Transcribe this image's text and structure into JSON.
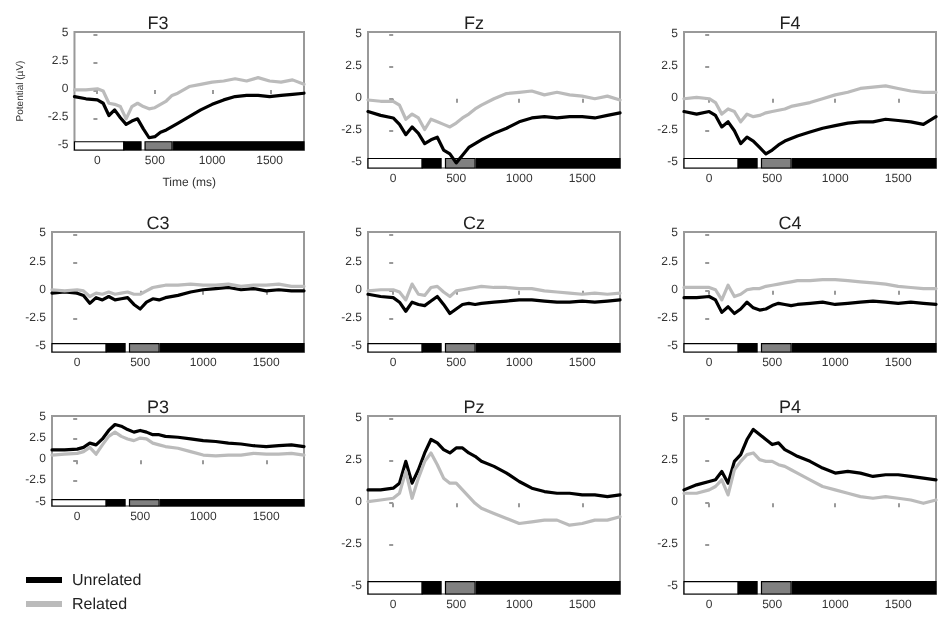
{
  "chart_data": [
    {
      "type": "line",
      "title": "F3",
      "xlabel": "Time (ms)",
      "ylabel": "Potential (µV)",
      "x": [
        -200,
        -100,
        0,
        50,
        100,
        150,
        200,
        250,
        300,
        350,
        400,
        450,
        500,
        550,
        600,
        650,
        700,
        800,
        900,
        1000,
        1100,
        1200,
        1300,
        1400,
        1500,
        1600,
        1700,
        1800
      ],
      "xlim": [
        -200,
        1800
      ],
      "ylim": [
        -5.4,
        5.2
      ],
      "xticks": [
        0,
        500,
        1000,
        1500
      ],
      "yticks": [
        -5,
        -2.5,
        0,
        2.5,
        5
      ],
      "grid": false,
      "legend": false,
      "marker": "none",
      "line_style": "solid",
      "bands": [
        {
          "axis": "x",
          "from": -200,
          "to": 230,
          "color": "#ffffff"
        },
        {
          "axis": "x",
          "from": 230,
          "to": 380,
          "color": "#000000"
        },
        {
          "axis": "x",
          "from": 415,
          "to": 650,
          "color": "#808080"
        },
        {
          "axis": "x",
          "from": 660,
          "to": 1800,
          "color": "#000000"
        }
      ],
      "series": [
        {
          "color": "#000000",
          "values": [
            -0.6,
            -0.8,
            -0.9,
            -1.2,
            -2.3,
            -1.8,
            -2.5,
            -3.1,
            -2.8,
            -2.6,
            -3.5,
            -4.3,
            -4.2,
            -3.8,
            -3.6,
            -3.3,
            -3.0,
            -2.4,
            -1.8,
            -1.3,
            -0.9,
            -0.6,
            -0.5,
            -0.5,
            -0.6,
            -0.5,
            -0.4,
            -0.3
          ]
        },
        {
          "color": "#bbbbbb",
          "values": [
            0,
            0,
            0.1,
            -0.1,
            -1.2,
            -1.3,
            -1.5,
            -2.6,
            -1.5,
            -1.2,
            -1.5,
            -1.7,
            -1.6,
            -1.3,
            -1.0,
            -0.5,
            -0.3,
            0.3,
            0.5,
            0.7,
            0.8,
            1.0,
            0.8,
            1.1,
            0.8,
            0.7,
            0.9,
            0.5
          ]
        }
      ]
    },
    {
      "type": "line",
      "title": "Fz",
      "x": [
        -200,
        -100,
        0,
        50,
        100,
        150,
        200,
        250,
        300,
        350,
        400,
        450,
        500,
        550,
        600,
        650,
        700,
        800,
        900,
        1000,
        1100,
        1200,
        1300,
        1400,
        1500,
        1600,
        1700,
        1800
      ],
      "xlim": [
        -200,
        1800
      ],
      "ylim": [
        -5.4,
        5.2
      ],
      "xticks": [
        0,
        500,
        1000,
        1500
      ],
      "yticks": [
        -5,
        -2.5,
        0,
        2.5,
        5
      ],
      "grid": false,
      "legend": false,
      "marker": "none",
      "line_style": "solid",
      "bands": [
        {
          "axis": "x",
          "from": -200,
          "to": 230,
          "color": "#ffffff"
        },
        {
          "axis": "x",
          "from": 230,
          "to": 380,
          "color": "#000000"
        },
        {
          "axis": "x",
          "from": 415,
          "to": 650,
          "color": "#808080"
        },
        {
          "axis": "x",
          "from": 660,
          "to": 1800,
          "color": "#000000"
        }
      ],
      "series": [
        {
          "color": "#000000",
          "values": [
            -1.0,
            -1.3,
            -1.5,
            -2.0,
            -2.8,
            -2.2,
            -2.7,
            -3.5,
            -3.2,
            -3.0,
            -4.0,
            -4.3,
            -5.0,
            -4.4,
            -3.8,
            -3.5,
            -3.2,
            -2.7,
            -2.3,
            -1.8,
            -1.5,
            -1.4,
            -1.5,
            -1.4,
            -1.4,
            -1.5,
            -1.3,
            -1.1
          ]
        },
        {
          "color": "#bbbbbb",
          "values": [
            -0.1,
            -0.2,
            -0.2,
            -0.5,
            -1.6,
            -1.2,
            -1.5,
            -2.4,
            -1.6,
            -1.8,
            -2.0,
            -2.2,
            -1.9,
            -1.5,
            -1.2,
            -0.8,
            -0.5,
            0,
            0.4,
            0.5,
            0.6,
            0.3,
            0.5,
            0.3,
            0.2,
            0,
            0.2,
            -0.1
          ]
        }
      ]
    },
    {
      "type": "line",
      "title": "F4",
      "x": [
        -200,
        -100,
        0,
        50,
        100,
        150,
        200,
        250,
        300,
        350,
        400,
        450,
        500,
        550,
        600,
        650,
        700,
        800,
        900,
        1000,
        1100,
        1200,
        1300,
        1400,
        1500,
        1600,
        1700,
        1800
      ],
      "xlim": [
        -200,
        1800
      ],
      "ylim": [
        -5.4,
        5.2
      ],
      "xticks": [
        0,
        500,
        1000,
        1500
      ],
      "yticks": [
        -5,
        -2.5,
        0,
        2.5,
        5
      ],
      "grid": false,
      "legend": false,
      "marker": "none",
      "line_style": "solid",
      "bands": [
        {
          "axis": "x",
          "from": -200,
          "to": 230,
          "color": "#ffffff"
        },
        {
          "axis": "x",
          "from": 230,
          "to": 380,
          "color": "#000000"
        },
        {
          "axis": "x",
          "from": 415,
          "to": 650,
          "color": "#808080"
        },
        {
          "axis": "x",
          "from": 660,
          "to": 1800,
          "color": "#000000"
        }
      ],
      "series": [
        {
          "color": "#000000",
          "values": [
            -1.0,
            -1.2,
            -1.0,
            -1.3,
            -2.2,
            -1.8,
            -2.5,
            -3.5,
            -3.0,
            -3.3,
            -3.8,
            -4.3,
            -4.0,
            -3.6,
            -3.3,
            -3.1,
            -2.9,
            -2.6,
            -2.3,
            -2.1,
            -1.9,
            -1.8,
            -1.8,
            -1.6,
            -1.7,
            -1.8,
            -2.0,
            -1.4
          ]
        },
        {
          "color": "#bbbbbb",
          "values": [
            0,
            0.1,
            0,
            -0.3,
            -1.2,
            -0.8,
            -1.0,
            -1.8,
            -1.2,
            -1.4,
            -1.3,
            -1.1,
            -1.0,
            -0.9,
            -0.8,
            -0.6,
            -0.5,
            -0.3,
            0,
            0.3,
            0.5,
            0.8,
            0.9,
            1.0,
            0.8,
            0.6,
            0.5,
            0.5
          ]
        }
      ]
    },
    {
      "type": "line",
      "title": "C3",
      "x": [
        -200,
        -100,
        0,
        50,
        100,
        150,
        200,
        250,
        300,
        350,
        400,
        450,
        500,
        550,
        600,
        650,
        700,
        800,
        900,
        1000,
        1100,
        1200,
        1300,
        1400,
        1500,
        1600,
        1700,
        1800
      ],
      "xlim": [
        -200,
        1800
      ],
      "ylim": [
        -5.4,
        5.2
      ],
      "xticks": [
        0,
        500,
        1000,
        1500
      ],
      "yticks": [
        -5,
        -2.5,
        0,
        2.5,
        5
      ],
      "grid": false,
      "legend": false,
      "marker": "none",
      "line_style": "solid",
      "bands": [
        {
          "axis": "x",
          "from": -200,
          "to": 230,
          "color": "#ffffff"
        },
        {
          "axis": "x",
          "from": 230,
          "to": 380,
          "color": "#000000"
        },
        {
          "axis": "x",
          "from": 415,
          "to": 650,
          "color": "#808080"
        },
        {
          "axis": "x",
          "from": 660,
          "to": 1800,
          "color": "#000000"
        }
      ],
      "series": [
        {
          "color": "#000000",
          "values": [
            -0.2,
            -0.1,
            -0.2,
            -0.4,
            -1.1,
            -0.6,
            -0.8,
            -0.5,
            -0.8,
            -0.7,
            -0.6,
            -1.2,
            -1.6,
            -1.0,
            -0.7,
            -0.8,
            -0.6,
            -0.4,
            -0.1,
            0.1,
            0.2,
            0.3,
            0.1,
            0.2,
            0,
            0.1,
            0,
            0
          ]
        },
        {
          "color": "#bbbbbb",
          "values": [
            0.1,
            0,
            0.1,
            0,
            -0.5,
            -0.2,
            -0.3,
            -0.1,
            -0.3,
            -0.2,
            -0.1,
            -0.3,
            -0.3,
            0,
            0.3,
            0.4,
            0.5,
            0.5,
            0.6,
            0.5,
            0.5,
            0.6,
            0.4,
            0.5,
            0.5,
            0.6,
            0.4,
            0.4
          ]
        }
      ]
    },
    {
      "type": "line",
      "title": "Cz",
      "x": [
        -200,
        -100,
        0,
        50,
        100,
        150,
        200,
        250,
        300,
        350,
        400,
        450,
        500,
        550,
        600,
        650,
        700,
        800,
        900,
        1000,
        1100,
        1200,
        1300,
        1400,
        1500,
        1600,
        1700,
        1800
      ],
      "xlim": [
        -200,
        1800
      ],
      "ylim": [
        -5.4,
        5.2
      ],
      "xticks": [
        0,
        500,
        1000,
        1500
      ],
      "yticks": [
        -5,
        -2.5,
        0,
        2.5,
        5
      ],
      "grid": false,
      "legend": false,
      "marker": "none",
      "line_style": "solid",
      "bands": [
        {
          "axis": "x",
          "from": -200,
          "to": 230,
          "color": "#ffffff"
        },
        {
          "axis": "x",
          "from": 230,
          "to": 380,
          "color": "#000000"
        },
        {
          "axis": "x",
          "from": 415,
          "to": 650,
          "color": "#808080"
        },
        {
          "axis": "x",
          "from": 660,
          "to": 1800,
          "color": "#000000"
        }
      ],
      "series": [
        {
          "color": "#000000",
          "values": [
            -0.3,
            -0.5,
            -0.6,
            -1.0,
            -1.8,
            -1.0,
            -1.2,
            -1.3,
            -0.9,
            -0.5,
            -1.2,
            -2.0,
            -1.6,
            -1.2,
            -1.1,
            -1.2,
            -1.1,
            -1.0,
            -0.9,
            -0.8,
            -0.8,
            -0.9,
            -1.0,
            -1.0,
            -0.9,
            -1.0,
            -0.9,
            -0.8
          ]
        },
        {
          "color": "#bbbbbb",
          "values": [
            0,
            0.1,
            0.1,
            -0.1,
            -0.8,
            0.6,
            -0.3,
            -0.4,
            0.3,
            0.4,
            -0.1,
            -0.5,
            0,
            0.1,
            0.2,
            0.3,
            0.4,
            0.3,
            0.3,
            0.2,
            0.2,
            0,
            -0.1,
            -0.2,
            -0.3,
            -0.2,
            -0.3,
            -0.2
          ]
        }
      ]
    },
    {
      "type": "line",
      "title": "C4",
      "x": [
        -200,
        -100,
        0,
        50,
        100,
        150,
        200,
        250,
        300,
        350,
        400,
        450,
        500,
        550,
        600,
        650,
        700,
        800,
        900,
        1000,
        1100,
        1200,
        1300,
        1400,
        1500,
        1600,
        1700,
        1800
      ],
      "xlim": [
        -200,
        1800
      ],
      "ylim": [
        -5.4,
        5.2
      ],
      "xticks": [
        0,
        500,
        1000,
        1500
      ],
      "yticks": [
        -5,
        -2.5,
        0,
        2.5,
        5
      ],
      "grid": false,
      "legend": false,
      "marker": "none",
      "line_style": "solid",
      "bands": [
        {
          "axis": "x",
          "from": -200,
          "to": 230,
          "color": "#ffffff"
        },
        {
          "axis": "x",
          "from": 230,
          "to": 380,
          "color": "#000000"
        },
        {
          "axis": "x",
          "from": 415,
          "to": 650,
          "color": "#808080"
        },
        {
          "axis": "x",
          "from": 660,
          "to": 1800,
          "color": "#000000"
        }
      ],
      "series": [
        {
          "color": "#000000",
          "values": [
            -0.6,
            -0.6,
            -0.5,
            -0.8,
            -1.9,
            -1.4,
            -2.0,
            -1.6,
            -1.0,
            -1.5,
            -1.7,
            -1.6,
            -1.3,
            -1.1,
            -1.2,
            -1.3,
            -1.2,
            -1.1,
            -1.0,
            -1.2,
            -1.1,
            -1.0,
            -0.9,
            -1.0,
            -1.1,
            -1.0,
            -1.1,
            -1.2
          ]
        },
        {
          "color": "#bbbbbb",
          "values": [
            0.3,
            0.3,
            0.3,
            0.1,
            -0.8,
            0.5,
            -0.5,
            -0.3,
            0.1,
            0.2,
            0.2,
            0.4,
            0.5,
            0.6,
            0.7,
            0.8,
            0.9,
            0.9,
            1.0,
            1.0,
            0.9,
            0.8,
            0.7,
            0.6,
            0.4,
            0.3,
            0.2,
            0.2
          ]
        }
      ]
    },
    {
      "type": "line",
      "title": "P3",
      "x": [
        -200,
        -100,
        0,
        50,
        100,
        150,
        200,
        250,
        300,
        350,
        400,
        450,
        500,
        550,
        600,
        650,
        700,
        800,
        900,
        1000,
        1100,
        1200,
        1300,
        1400,
        1500,
        1600,
        1700,
        1800
      ],
      "xlim": [
        -200,
        1800
      ],
      "ylim": [
        -5.4,
        5.2
      ],
      "xticks": [
        0,
        500,
        1000,
        1500
      ],
      "yticks": [
        -5,
        -2.5,
        0,
        2.5,
        5
      ],
      "grid": false,
      "legend": "bottom left",
      "marker": "none",
      "line_style": "solid",
      "bands": [
        {
          "axis": "x",
          "from": -200,
          "to": 230,
          "color": "#ffffff"
        },
        {
          "axis": "x",
          "from": 230,
          "to": 380,
          "color": "#000000"
        },
        {
          "axis": "x",
          "from": 415,
          "to": 650,
          "color": "#808080"
        },
        {
          "axis": "x",
          "from": 660,
          "to": 1800,
          "color": "#000000"
        }
      ],
      "series": [
        {
          "name": "Unrelated",
          "color": "#000000",
          "values": [
            1.2,
            1.2,
            1.3,
            1.5,
            2.0,
            1.8,
            2.5,
            3.5,
            4.2,
            4.0,
            3.6,
            3.3,
            3.5,
            3.3,
            3.0,
            3.0,
            2.8,
            2.7,
            2.5,
            2.3,
            2.2,
            2.0,
            1.9,
            1.7,
            1.6,
            1.7,
            1.8,
            1.6
          ]
        },
        {
          "name": "Related",
          "color": "#bbbbbb",
          "values": [
            0.6,
            0.7,
            0.8,
            1.0,
            1.5,
            0.7,
            1.8,
            2.8,
            3.3,
            2.8,
            2.5,
            2.3,
            2.6,
            2.5,
            2.0,
            1.8,
            1.6,
            1.4,
            1.0,
            0.6,
            0.5,
            0.6,
            0.6,
            0.8,
            0.7,
            0.7,
            0.8,
            0.6
          ]
        }
      ]
    },
    {
      "type": "line",
      "title": "Pz",
      "x": [
        -200,
        -100,
        0,
        50,
        100,
        150,
        200,
        250,
        300,
        350,
        400,
        450,
        500,
        550,
        600,
        650,
        700,
        800,
        900,
        1000,
        1100,
        1200,
        1300,
        1400,
        1500,
        1600,
        1700,
        1800
      ],
      "xlim": [
        -200,
        1800
      ],
      "ylim": [
        -5.4,
        5.2
      ],
      "xticks": [
        0,
        500,
        1000,
        1500
      ],
      "yticks": [
        -5,
        -2.5,
        0,
        2.5,
        5
      ],
      "grid": false,
      "legend": false,
      "marker": "none",
      "line_style": "solid",
      "bands": [
        {
          "axis": "x",
          "from": -200,
          "to": 230,
          "color": "#ffffff"
        },
        {
          "axis": "x",
          "from": 230,
          "to": 380,
          "color": "#000000"
        },
        {
          "axis": "x",
          "from": 415,
          "to": 650,
          "color": "#808080"
        },
        {
          "axis": "x",
          "from": 660,
          "to": 1800,
          "color": "#000000"
        }
      ],
      "series": [
        {
          "color": "#000000",
          "values": [
            0.8,
            0.8,
            0.9,
            1.2,
            2.5,
            1.2,
            2.0,
            3.0,
            3.8,
            3.6,
            3.2,
            3.0,
            3.3,
            3.3,
            3.0,
            2.8,
            2.5,
            2.2,
            1.8,
            1.3,
            0.9,
            0.7,
            0.6,
            0.6,
            0.5,
            0.5,
            0.4,
            0.5
          ]
        },
        {
          "color": "#bbbbbb",
          "values": [
            0.1,
            0.2,
            0.3,
            0.6,
            1.9,
            0.3,
            1.5,
            2.5,
            3.0,
            2.3,
            1.5,
            1.2,
            1.2,
            0.8,
            0.4,
            0,
            -0.3,
            -0.6,
            -0.9,
            -1.2,
            -1.1,
            -1.0,
            -1.0,
            -1.3,
            -1.2,
            -1.0,
            -1.0,
            -0.8
          ]
        }
      ]
    },
    {
      "type": "line",
      "title": "P4",
      "x": [
        -200,
        -100,
        0,
        50,
        100,
        150,
        200,
        250,
        300,
        350,
        400,
        450,
        500,
        550,
        600,
        650,
        700,
        800,
        900,
        1000,
        1100,
        1200,
        1300,
        1400,
        1500,
        1600,
        1700,
        1800
      ],
      "xlim": [
        -200,
        1800
      ],
      "ylim": [
        -5.4,
        5.2
      ],
      "xticks": [
        0,
        500,
        1000,
        1500
      ],
      "yticks": [
        -5,
        -2.5,
        0,
        2.5,
        5
      ],
      "grid": false,
      "legend": false,
      "marker": "none",
      "line_style": "solid",
      "bands": [
        {
          "axis": "x",
          "from": -200,
          "to": 230,
          "color": "#ffffff"
        },
        {
          "axis": "x",
          "from": 230,
          "to": 380,
          "color": "#000000"
        },
        {
          "axis": "x",
          "from": 415,
          "to": 650,
          "color": "#808080"
        },
        {
          "axis": "x",
          "from": 660,
          "to": 1800,
          "color": "#000000"
        }
      ],
      "series": [
        {
          "color": "#000000",
          "values": [
            0.8,
            1.1,
            1.3,
            1.4,
            1.9,
            1.2,
            2.5,
            2.9,
            3.8,
            4.4,
            4.1,
            3.8,
            3.5,
            3.6,
            3.2,
            3.0,
            2.8,
            2.5,
            2.1,
            1.8,
            1.9,
            1.8,
            1.6,
            1.7,
            1.7,
            1.6,
            1.5,
            1.4
          ]
        },
        {
          "color": "#bbbbbb",
          "values": [
            0.6,
            0.6,
            0.8,
            1.0,
            1.4,
            0.5,
            2.0,
            2.5,
            2.9,
            3.0,
            2.6,
            2.5,
            2.5,
            2.3,
            2.2,
            2.0,
            1.8,
            1.4,
            1.0,
            0.8,
            0.6,
            0.4,
            0.3,
            0.4,
            0.3,
            0.2,
            0,
            0.2
          ]
        }
      ]
    }
  ]
}
